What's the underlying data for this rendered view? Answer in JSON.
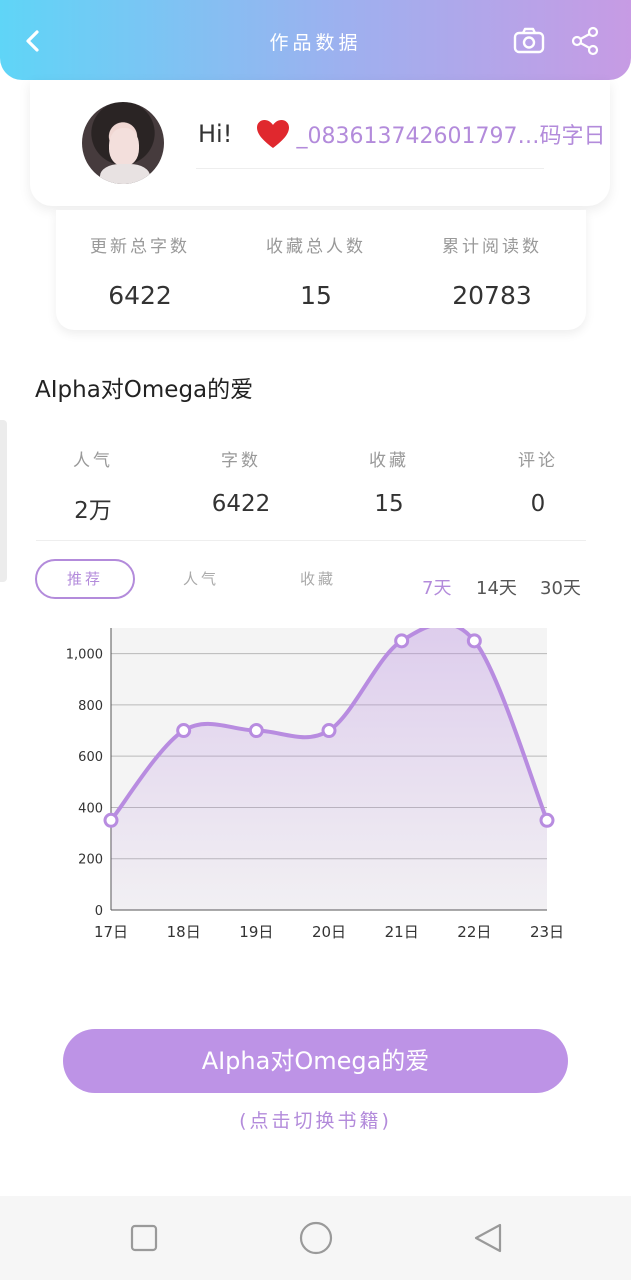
{
  "header": {
    "title": "作品数据",
    "back_icon": "chevron-left-icon",
    "camera_icon": "camera-icon",
    "share_icon": "share-icon",
    "gradient": [
      "#5fd5f7",
      "#c79be4"
    ]
  },
  "profile": {
    "greeting": "Hi!",
    "username": "_083613742601797…码字日"
  },
  "totals": [
    {
      "label": "更新总字数",
      "value": "6422"
    },
    {
      "label": "收藏总人数",
      "value": "15"
    },
    {
      "label": "累计阅读数",
      "value": "20783"
    }
  ],
  "book": {
    "title": "AIpha对Omega的爱",
    "metrics": [
      {
        "label": "人气",
        "value": "2万"
      },
      {
        "label": "字数",
        "value": "6422"
      },
      {
        "label": "收藏",
        "value": "15"
      },
      {
        "label": "评论",
        "value": "0"
      }
    ]
  },
  "tabs": [
    "推荐",
    "人气",
    "收藏"
  ],
  "ranges": [
    "7天",
    "14天",
    "30天"
  ],
  "accent_color": "#b38bdb",
  "chart_data": {
    "type": "area",
    "categories": [
      "17日",
      "18日",
      "19日",
      "20日",
      "21日",
      "22日",
      "23日"
    ],
    "values": [
      350,
      700,
      700,
      700,
      1050,
      1050,
      350
    ],
    "ylim": [
      0,
      1100
    ],
    "yticks": [
      "0",
      "200",
      "400",
      "600",
      "800",
      "1,000"
    ],
    "grid": true,
    "color": "#b88ce0"
  },
  "switch_button": {
    "label": "AIpha对Omega的爱",
    "hint": "(点击切换书籍)"
  },
  "navbar": {
    "icons": [
      "recent-apps-icon",
      "home-icon",
      "back-icon"
    ]
  }
}
